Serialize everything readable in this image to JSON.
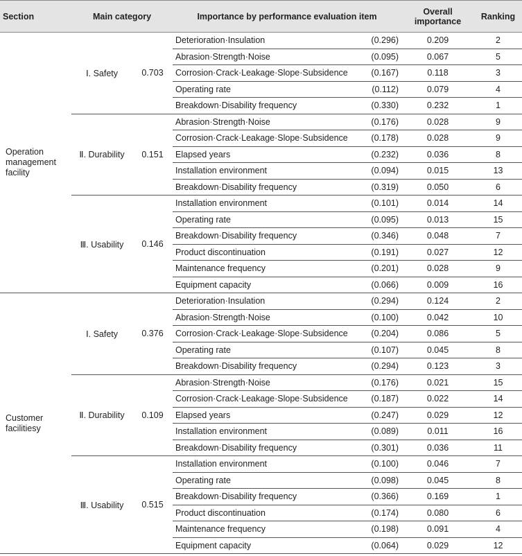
{
  "header": {
    "section": "Section",
    "main_category": "Main category",
    "importance": "Importance by performance evaluation item",
    "overall": "Overall importance",
    "ranking": "Ranking"
  },
  "sections": [
    {
      "name": "Operation management facility",
      "categories": [
        {
          "name": "Ⅰ. Safety",
          "weight": "0.703",
          "items": [
            {
              "name": "Deterioration·Insulation",
              "weight": "(0.296)",
              "overall": "0.209",
              "ranking": "2"
            },
            {
              "name": "Abrasion·Strength·Noise",
              "weight": "(0.095)",
              "overall": "0.067",
              "ranking": "5"
            },
            {
              "name": "Corrosion·Crack·Leakage·Slope·Subsidence",
              "weight": "(0.167)",
              "overall": "0.118",
              "ranking": "3"
            },
            {
              "name": "Operating rate",
              "weight": "(0.112)",
              "overall": "0.079",
              "ranking": "4"
            },
            {
              "name": "Breakdown·Disability frequency",
              "weight": "(0.330)",
              "overall": "0.232",
              "ranking": "1"
            }
          ]
        },
        {
          "name": "Ⅱ. Durability",
          "weight": "0.151",
          "items": [
            {
              "name": "Abrasion·Strength·Noise",
              "weight": "(0.176)",
              "overall": "0.028",
              "ranking": "9"
            },
            {
              "name": "Corrosion·Crack·Leakage·Slope·Subsidence",
              "weight": "(0.178)",
              "overall": "0.028",
              "ranking": "9"
            },
            {
              "name": "Elapsed years",
              "weight": "(0.232)",
              "overall": "0.036",
              "ranking": "8"
            },
            {
              "name": "Installation environment",
              "weight": "(0.094)",
              "overall": "0.015",
              "ranking": "13"
            },
            {
              "name": "Breakdown·Disability frequency",
              "weight": "(0.319)",
              "overall": "0.050",
              "ranking": "6"
            }
          ]
        },
        {
          "name": "Ⅲ. Usability",
          "weight": "0.146",
          "items": [
            {
              "name": "Installation environment",
              "weight": "(0.101)",
              "overall": "0.014",
              "ranking": "14"
            },
            {
              "name": "Operating rate",
              "weight": "(0.095)",
              "overall": "0.013",
              "ranking": "15"
            },
            {
              "name": "Breakdown·Disability frequency",
              "weight": "(0.346)",
              "overall": "0.048",
              "ranking": "7"
            },
            {
              "name": "Product discontinuation",
              "weight": "(0.191)",
              "overall": "0.027",
              "ranking": "12"
            },
            {
              "name": "Maintenance frequency",
              "weight": "(0.201)",
              "overall": "0.028",
              "ranking": "9"
            },
            {
              "name": "Equipment capacity",
              "weight": "(0.066)",
              "overall": "0.009",
              "ranking": "16"
            }
          ]
        }
      ]
    },
    {
      "name": "Customer facilitiesy",
      "categories": [
        {
          "name": "Ⅰ. Safety",
          "weight": "0.376",
          "items": [
            {
              "name": "Deterioration·Insulation",
              "weight": "(0.294)",
              "overall": "0.124",
              "ranking": "2"
            },
            {
              "name": "Abrasion·Strength·Noise",
              "weight": "(0.100)",
              "overall": "0.042",
              "ranking": "10"
            },
            {
              "name": "Corrosion·Crack·Leakage·Slope·Subsidence",
              "weight": "(0.204)",
              "overall": "0.086",
              "ranking": "5"
            },
            {
              "name": "Operating rate",
              "weight": "(0.107)",
              "overall": "0.045",
              "ranking": "8"
            },
            {
              "name": "Breakdown·Disability frequency",
              "weight": "(0.294)",
              "overall": "0.123",
              "ranking": "3"
            }
          ]
        },
        {
          "name": "Ⅱ. Durability",
          "weight": "0.109",
          "items": [
            {
              "name": "Abrasion·Strength·Noise",
              "weight": "(0.176)",
              "overall": "0.021",
              "ranking": "15"
            },
            {
              "name": "Corrosion·Crack·Leakage·Slope·Subsidence",
              "weight": "(0.187)",
              "overall": "0.022",
              "ranking": "14"
            },
            {
              "name": "Elapsed years",
              "weight": "(0.247)",
              "overall": "0.029",
              "ranking": "12"
            },
            {
              "name": "Installation environment",
              "weight": "(0.089)",
              "overall": "0.011",
              "ranking": "16"
            },
            {
              "name": "Breakdown·Disability frequency",
              "weight": "(0.301)",
              "overall": "0.036",
              "ranking": "11"
            }
          ]
        },
        {
          "name": "Ⅲ. Usability",
          "weight": "0.515",
          "items": [
            {
              "name": "Installation environment",
              "weight": "(0.100)",
              "overall": "0.046",
              "ranking": "7"
            },
            {
              "name": "Operating rate",
              "weight": "(0.098)",
              "overall": "0.045",
              "ranking": "8"
            },
            {
              "name": "Breakdown·Disability frequency",
              "weight": "(0.366)",
              "overall": "0.169",
              "ranking": "1"
            },
            {
              "name": "Product discontinuation",
              "weight": "(0.174)",
              "overall": "0.080",
              "ranking": "6"
            },
            {
              "name": "Maintenance frequency",
              "weight": "(0.198)",
              "overall": "0.091",
              "ranking": "4"
            },
            {
              "name": "Equipment capacity",
              "weight": "(0.064)",
              "overall": "0.029",
              "ranking": "12"
            }
          ]
        }
      ]
    }
  ]
}
